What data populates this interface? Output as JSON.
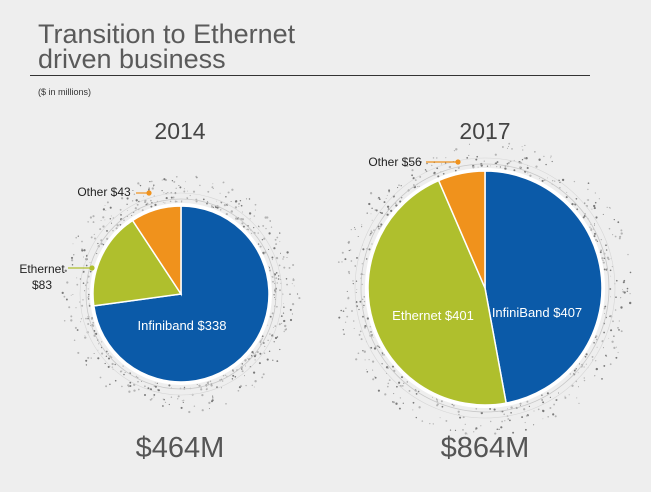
{
  "header": {
    "title_line1": "Transition to Ethernet",
    "title_line2": "driven business",
    "subtitle": "($ in millions)"
  },
  "colors": {
    "infiniband": "#0b5aa8",
    "ethernet": "#afbf2d",
    "other": "#f0921c",
    "callout_other": "#f0921c",
    "callout_ethernet": "#afbf2d"
  },
  "chart_data": [
    {
      "type": "pie",
      "title": "2014",
      "total_label": "$464M",
      "slices": [
        {
          "name": "Infiniband",
          "value": 338,
          "label": "Infiniband $338",
          "color": "#0b5aa8",
          "label_inside": true
        },
        {
          "name": "Ethernet",
          "value": 83,
          "label_lines": [
            "Ethernet",
            "$83"
          ],
          "color": "#afbf2d",
          "label_inside": false
        },
        {
          "name": "Other",
          "value": 43,
          "label": "Other $43",
          "color": "#f0921c",
          "label_inside": false
        }
      ]
    },
    {
      "type": "pie",
      "title": "2017",
      "total_label": "$864M",
      "slices": [
        {
          "name": "InfiniBand",
          "value": 407,
          "label": "InfiniBand $407",
          "color": "#0b5aa8",
          "label_inside": true
        },
        {
          "name": "Ethernet",
          "value": 401,
          "label": "Ethernet $401",
          "color": "#afbf2d",
          "label_inside": true
        },
        {
          "name": "Other",
          "value": 56,
          "label": "Other $56",
          "color": "#f0921c",
          "label_inside": false
        }
      ]
    }
  ]
}
